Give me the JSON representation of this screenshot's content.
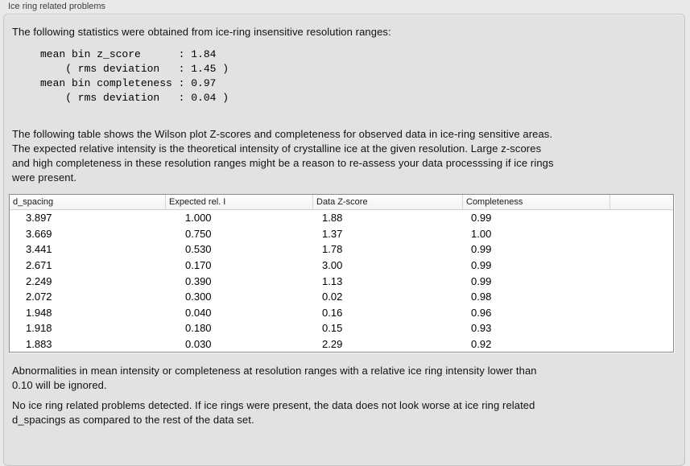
{
  "panel": {
    "title": "Ice ring related problems"
  },
  "intro_text": "The following statistics were obtained from ice-ring insensitive resolution ranges:",
  "stats_block": "mean bin z_score      : 1.84\n    ( rms deviation   : 1.45 )\nmean bin completeness : 0.97\n    ( rms deviation   : 0.04 )",
  "table_intro": "The following table shows the Wilson plot Z-scores and completeness for observed data in ice-ring sensitive areas.\nThe expected relative intensity is the theoretical intensity of crystalline ice at the given resolution. Large z-scores\nand high completeness in these resolution ranges might be a reason to re-assess your data processsing if ice rings\nwere present.",
  "table": {
    "columns": [
      "d_spacing",
      "Expected rel. I",
      "Data Z-score",
      "Completeness"
    ],
    "rows": [
      [
        "3.897",
        "1.000",
        "1.88",
        "0.99"
      ],
      [
        "3.669",
        "0.750",
        "1.37",
        "1.00"
      ],
      [
        "3.441",
        "0.530",
        "1.78",
        "0.99"
      ],
      [
        "2.671",
        "0.170",
        "3.00",
        "0.99"
      ],
      [
        "2.249",
        "0.390",
        "1.13",
        "0.99"
      ],
      [
        "2.072",
        "0.300",
        "0.02",
        "0.98"
      ],
      [
        "1.948",
        "0.040",
        "0.16",
        "0.96"
      ],
      [
        "1.918",
        "0.180",
        "0.15",
        "0.93"
      ],
      [
        "1.883",
        "0.030",
        "2.29",
        "0.92"
      ]
    ]
  },
  "note_ignore": "Abnormalities in mean intensity or completeness at resolution ranges with a relative ice ring intensity lower than\n0.10 will be ignored.",
  "conclusion": "No ice ring related problems detected. If ice rings were present, the data does not look worse at ice ring related\nd_spacings as compared to the rest of the data set.",
  "colors": {
    "page_background": "#e9e9e9",
    "box_background": "#e2e2e2",
    "box_border": "#c3c3c3",
    "table_border": "#8b8b8b",
    "table_header_background": "#f8f8f8",
    "text": "#111111"
  }
}
